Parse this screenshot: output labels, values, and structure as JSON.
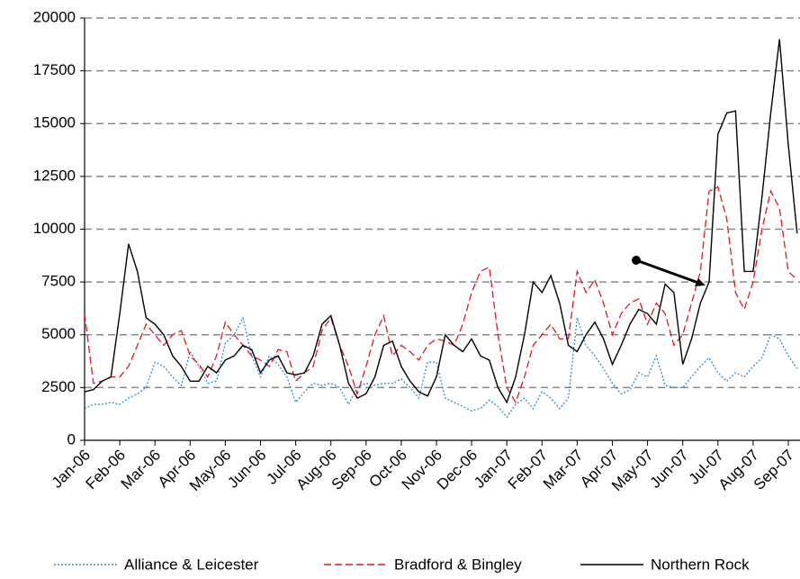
{
  "chart_data": {
    "type": "line",
    "categories": [
      "Jan-06",
      null,
      null,
      null,
      "Feb-06",
      null,
      null,
      null,
      "Mar-06",
      null,
      null,
      null,
      "Apr-06",
      null,
      null,
      null,
      "May-06",
      null,
      null,
      null,
      "Jun-06",
      null,
      null,
      null,
      "Jul-06",
      null,
      null,
      null,
      "Aug-06",
      null,
      null,
      null,
      "Sep-06",
      null,
      null,
      null,
      "Oct-06",
      null,
      null,
      null,
      "Nov-06",
      null,
      null,
      null,
      "Dec-06",
      null,
      null,
      null,
      "Jan-07",
      null,
      null,
      null,
      "Feb-07",
      null,
      null,
      null,
      "Mar-07",
      null,
      null,
      null,
      "Apr-07",
      null,
      null,
      null,
      "May-07",
      null,
      null,
      null,
      "Jun-07",
      null,
      null,
      null,
      "Jul-07",
      null,
      null,
      null,
      "Aug-07",
      null,
      null,
      null,
      "Sep-07",
      null
    ],
    "series": [
      {
        "name": "Alliance & Leicester",
        "color": "#2e8bd6",
        "line_style": "dotted",
        "values": [
          1500,
          1700,
          1700,
          1800,
          1700,
          2000,
          2200,
          2500,
          3700,
          3500,
          3000,
          2600,
          4200,
          3500,
          2700,
          2800,
          4600,
          5000,
          5800,
          4000,
          3000,
          4000,
          3600,
          3000,
          1800,
          2300,
          2700,
          2600,
          2700,
          2500,
          1700,
          2500,
          2700,
          2600,
          2700,
          2700,
          2900,
          2500,
          2000,
          3700,
          3700,
          2000,
          1800,
          1600,
          1400,
          1500,
          1900,
          1600,
          1100,
          1700,
          2000,
          1500,
          2300,
          2000,
          1500,
          2000,
          5800,
          4500,
          4000,
          3400,
          2700,
          2200,
          2400,
          3200,
          3000,
          4000,
          2600,
          2500,
          2500,
          3000,
          3500,
          3900,
          3200,
          2800,
          3200,
          3000,
          3500,
          3900,
          5000,
          4800,
          4000,
          3400
        ]
      },
      {
        "name": "Bradford & Bingley",
        "color": "#e8141b",
        "line_style": "dashed",
        "values": [
          6000,
          2700,
          2800,
          3000,
          3000,
          3500,
          4500,
          5500,
          5000,
          4500,
          5000,
          5200,
          4000,
          3600,
          3000,
          4000,
          5600,
          5000,
          4500,
          4000,
          3800,
          3500,
          4300,
          4200,
          2800,
          3200,
          3500,
          5200,
          5800,
          4500,
          3500,
          2200,
          3500,
          5000,
          5900,
          4000,
          4500,
          4200,
          3800,
          4500,
          4800,
          4700,
          4500,
          5500,
          7000,
          8000,
          8200,
          5000,
          2500,
          1800,
          3000,
          4500,
          5000,
          5500,
          4800,
          4800,
          8000,
          7000,
          7600,
          6500,
          5000,
          6000,
          6500,
          6700,
          5500,
          6500,
          6000,
          4500,
          5000,
          6500,
          8000,
          11800,
          12000,
          10500,
          7000,
          6200,
          7500,
          10000,
          11800,
          11000,
          8000,
          7600
        ]
      },
      {
        "name": "Northern Rock",
        "color": "#000000",
        "line_style": "solid",
        "values": [
          2300,
          2400,
          2800,
          3000,
          6000,
          9300,
          8000,
          5800,
          5500,
          5000,
          4000,
          3500,
          2800,
          2800,
          3500,
          3200,
          3800,
          4000,
          4500,
          4300,
          3200,
          3800,
          4000,
          3200,
          3100,
          3200,
          4000,
          5500,
          5900,
          4500,
          2700,
          2000,
          2200,
          3000,
          4500,
          4700,
          3500,
          2800,
          2300,
          2100,
          3000,
          5000,
          4500,
          4200,
          4800,
          4000,
          3800,
          2500,
          1800,
          3000,
          5000,
          7500,
          7000,
          7800,
          6500,
          4500,
          4200,
          5000,
          5600,
          4800,
          3600,
          4500,
          5500,
          6200,
          6000,
          5500,
          7400,
          7000,
          3600,
          4800,
          6500,
          7500,
          14500,
          15500,
          15600,
          8000,
          8000,
          11500,
          15500,
          19000,
          14000,
          9800
        ]
      }
    ],
    "ylim": [
      0,
      20000
    ],
    "yticks": [
      0,
      2500,
      5000,
      7500,
      10000,
      12500,
      15000,
      17500,
      20000
    ],
    "grid": true
  }
}
